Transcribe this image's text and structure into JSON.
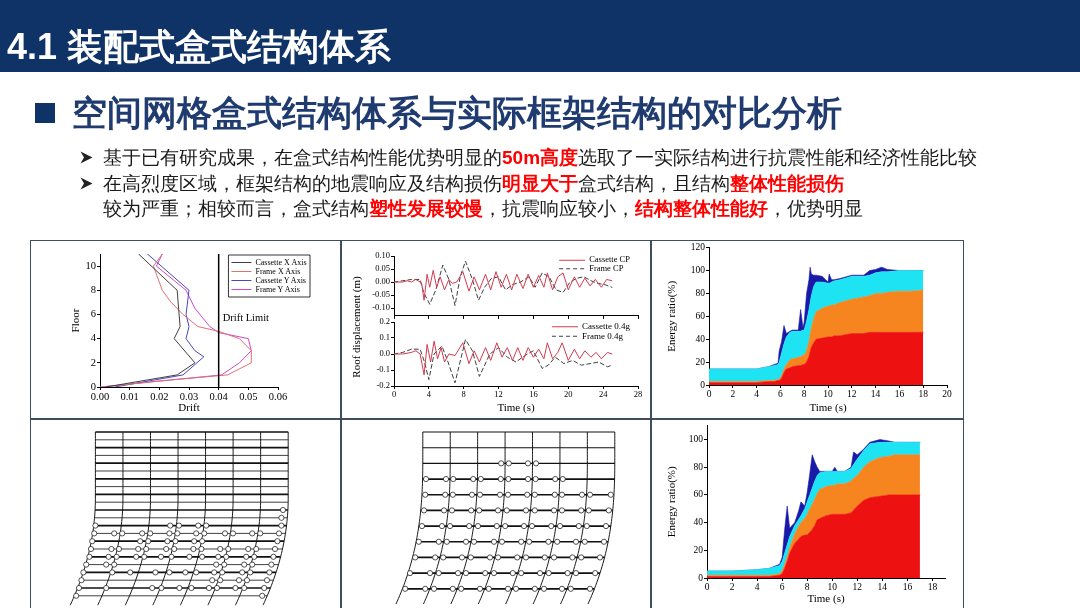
{
  "chart_data": [
    {
      "type": "other",
      "title": "4.1 装配式盒式结构体系",
      "subtitle": "空间网格盒式结构体系与实际框架结构的对比分析",
      "annotations": [
        "基于已有研究成果，在盒式结构性能优势明显的",
        "50m高度",
        "选取了一实际结构进行抗震性能和经济性能比较"
      ]
    },
    {
      "type": "other",
      "annotations": [
        "在高烈度区域，框架结构的地震响应及结构损伤",
        "明显大于",
        "盒式结构，且结构",
        "整体性能损伤",
        "较为严重；相较而言，盒式结构",
        "塑性发展较慢",
        "，抗震响应较小，",
        "结构整体性能好",
        "，优势明显"
      ]
    },
    {
      "type": "line",
      "xlabel": "Drift",
      "ylabel": "Floor",
      "xlim": [
        0,
        0.06
      ],
      "xticks": [
        {
          "value": 0,
          "label": "0.00"
        },
        0.01,
        0.02,
        0.03,
        0.04,
        0.05,
        0.06
      ],
      "ylim": [
        0,
        11
      ],
      "yticks": [
        0,
        2,
        4,
        6,
        8,
        10
      ],
      "legend": "top right",
      "ref_lines": [
        {
          "axis": "x",
          "value": 0.04,
          "label": "Drift Limit",
          "color": "#000000"
        }
      ],
      "series": [
        {
          "name": "Cassette X Axis",
          "color": "#404040",
          "x": [
            0.002,
            0.026,
            0.032,
            0.025,
            0.027,
            0.026,
            0.013
          ],
          "values": [
            0,
            1,
            2,
            4,
            5,
            8,
            11
          ]
        },
        {
          "name": "Frame X Axis",
          "color": "#e07070",
          "x": [
            0.001,
            0.02,
            0.043,
            0.051,
            0.051,
            0.047,
            0.04,
            0.033,
            0.028,
            0.024,
            0.021,
            0.018,
            0.021
          ],
          "values": [
            0,
            0.5,
            1,
            2,
            3,
            4,
            4.6,
            5,
            6,
            7,
            8,
            10,
            11
          ]
        },
        {
          "name": "Cassette Y Axis",
          "color": "#4848c0",
          "x": [
            0.005,
            0.028,
            0.035,
            0.032,
            0.029,
            0.03,
            0.029,
            0.03,
            0.016
          ],
          "values": [
            0,
            1,
            2.5,
            3,
            4,
            5,
            6,
            8,
            11
          ]
        },
        {
          "name": "Frame Y Axis",
          "color": "#d048d0",
          "x": [
            0,
            0.041,
            0.047,
            0.051,
            0.05,
            0.04,
            0.037,
            0.032,
            0.029,
            0.019,
            0.021
          ],
          "values": [
            0,
            1,
            2,
            3,
            4,
            4.5,
            5,
            6.5,
            8,
            10,
            11
          ]
        }
      ]
    },
    {
      "type": "line",
      "ylabel": "Roof displacement (m)",
      "xlim": [
        0,
        28
      ],
      "xticks": [
        0,
        4,
        8,
        12,
        16,
        20,
        24,
        28
      ],
      "ylim": [
        -0.13,
        0.1
      ],
      "yticks": [
        {
          "value": -0.1,
          "label": "-0.10"
        },
        -0.05,
        {
          "value": 0,
          "label": "0.00"
        },
        0.05,
        {
          "value": 0.1,
          "label": "0.10"
        }
      ],
      "tick_labels": "y",
      "legend": "top right",
      "series": [
        {
          "name": "Cassette CP",
          "color": "#d23c50",
          "x": [
            0,
            1,
            1.5,
            2,
            2.5,
            3,
            3.2,
            3.45,
            3.8,
            4.1,
            4.5,
            4.9,
            5.3,
            5.8,
            6.3,
            6.7,
            7.2,
            7.9,
            8.6,
            9.2,
            9.8,
            10.5,
            11.1,
            11.7,
            12.3,
            12.9,
            13.5,
            14.1,
            14.8,
            15.4,
            16,
            16.6,
            17.2,
            17.6,
            18.2,
            18.8,
            19.4,
            20,
            20.7,
            21.3,
            21.9,
            22.5,
            23.1,
            23.8,
            24.4,
            25
          ],
          "values": [
            0,
            0,
            0.005,
            0,
            0.01,
            0,
            -0.01,
            -0.07,
            0.03,
            -0.02,
            0.045,
            -0.02,
            0.02,
            -0.03,
            0.01,
            -0.005,
            0,
            0.04,
            -0.035,
            0.02,
            -0.03,
            0.03,
            -0.03,
            0.04,
            -0.02,
            0.03,
            -0.03,
            0.03,
            -0.025,
            0.03,
            -0.02,
            0.025,
            -0.02,
            0.035,
            -0.03,
            0.02,
            0.035,
            -0.03,
            0.02,
            -0.02,
            0.015,
            -0.015,
            0.01,
            -0.02,
            0.01,
            0.005
          ]
        },
        {
          "name": "Frame CP",
          "color": "#404040",
          "line_style": "dashed",
          "x": [
            0,
            1,
            2,
            3,
            3.4,
            4.1,
            4.8,
            5.6,
            6.3,
            7,
            7.6,
            8.2,
            9,
            9.7,
            10.4,
            11.2,
            12,
            12.8,
            13.6,
            14.5,
            15.5,
            16.2,
            17,
            17.8,
            18.6,
            19.4,
            20.2,
            21,
            21.8,
            22.6,
            23.4,
            24.2,
            25
          ],
          "values": [
            0,
            0.005,
            0.01,
            0.01,
            -0.04,
            -0.085,
            -0.03,
            0.065,
            0.01,
            -0.09,
            0.02,
            0.08,
            0.01,
            -0.07,
            -0.02,
            0.015,
            0.02,
            -0.03,
            -0.01,
            0,
            0.02,
            -0.02,
            0.035,
            0.02,
            -0.03,
            -0.04,
            0,
            0.015,
            0.02,
            0.005,
            -0.005,
            -0.01,
            -0.02
          ]
        }
      ]
    },
    {
      "type": "line",
      "xlabel": "Time (s)",
      "xlim": [
        0,
        28
      ],
      "xticks": [
        0,
        4,
        8,
        12,
        16,
        20,
        24,
        28
      ],
      "ylim": [
        -0.2,
        0.2
      ],
      "yticks": [
        -0.2,
        -0.1,
        {
          "value": 0,
          "label": "0.0"
        },
        0.1,
        0.2
      ],
      "legend": "top right",
      "series": [
        {
          "name": "Cassette 0.4g",
          "color": "#d23c50",
          "x": [
            0,
            1,
            2,
            2.5,
            3,
            3.45,
            3.8,
            4.2,
            4.6,
            5,
            5.4,
            5.8,
            6.3,
            7,
            7.9,
            8.6,
            9.2,
            9.8,
            10.5,
            11.1,
            11.8,
            12.4,
            13,
            13.6,
            14.2,
            14.8,
            15.4,
            16,
            16.6,
            17.2,
            17.6,
            18.2,
            18.8,
            19.3,
            20,
            20.7,
            21.3,
            21.9,
            22.6,
            23.2,
            23.8,
            24.5,
            25
          ],
          "values": [
            0,
            0,
            0.01,
            0.02,
            0,
            -0.13,
            0.06,
            -0.05,
            0.08,
            -0.03,
            0.04,
            -0.05,
            0,
            -0.01,
            0.07,
            -0.06,
            0.02,
            -0.05,
            0.04,
            -0.04,
            0.07,
            -0.02,
            0.04,
            -0.04,
            0.04,
            -0.04,
            0.04,
            -0.02,
            0.03,
            -0.03,
            0.07,
            -0.03,
            0.01,
            0.07,
            -0.04,
            0.03,
            -0.03,
            0.02,
            -0.02,
            0.01,
            -0.03,
            0.01,
            0
          ]
        },
        {
          "name": "Frame 0.4g",
          "color": "#404040",
          "line_style": "dashed",
          "x": [
            0,
            1,
            2,
            3,
            3.5,
            4,
            4.6,
            5.5,
            6.2,
            7,
            8.2,
            9,
            9.8,
            11,
            12,
            13,
            14,
            15,
            16,
            17,
            17.7,
            18.5,
            19.5,
            20.5,
            21.5,
            22.5,
            23.5,
            24.5,
            25
          ],
          "values": [
            0,
            0.01,
            0.03,
            0.03,
            -0.05,
            -0.16,
            0,
            0.05,
            -0.05,
            -0.18,
            0.09,
            0.02,
            -0.14,
            0,
            0.04,
            -0.02,
            -0.05,
            -0.01,
            0.02,
            -0.09,
            -0.07,
            -0.02,
            -0.06,
            -0.04,
            -0.07,
            -0.06,
            -0.05,
            -0.08,
            -0.07
          ]
        }
      ]
    },
    {
      "type": "area",
      "stacked": true,
      "xlabel": "Time (s)",
      "ylabel": "Energy ratio(%)",
      "xlim": [
        0,
        20
      ],
      "xticks": [
        0,
        2,
        4,
        6,
        8,
        10,
        12,
        14,
        16,
        18,
        20
      ],
      "ylim": [
        0,
        120
      ],
      "yticks": [
        0,
        20,
        40,
        60,
        80,
        100,
        120
      ],
      "x": [
        0,
        2,
        4,
        5,
        5.5,
        5.8,
        5.9,
        6.1,
        6.3,
        6.5,
        6.8,
        7,
        7.5,
        7.7,
        7.9,
        8,
        8.2,
        8.4,
        8.5,
        8.6,
        8.8,
        9,
        9.5,
        10,
        10.1,
        10.3,
        10.5,
        11,
        12,
        13,
        13.5,
        14,
        14.5,
        15,
        16,
        17,
        18
      ],
      "series": [
        {
          "color": "#ee1111",
          "values": [
            2,
            2,
            2,
            3,
            3,
            4,
            4,
            6,
            11,
            14,
            15,
            16,
            17,
            17,
            18,
            18,
            20,
            25,
            29,
            33,
            37,
            40,
            41,
            42,
            42,
            42,
            43,
            43,
            45,
            45,
            46,
            46,
            46,
            46,
            46,
            46,
            46
          ]
        },
        {
          "color": "#f7851f",
          "values": [
            1,
            1,
            1,
            1,
            1,
            1,
            1,
            2,
            3,
            4,
            7,
            7,
            7,
            8,
            8,
            8,
            10,
            13,
            15,
            17,
            21,
            24,
            26,
            27,
            27,
            28,
            27,
            29,
            30,
            32,
            32,
            34,
            34,
            35,
            36,
            36,
            37
          ]
        },
        {
          "color": "#1ee3f3",
          "values": [
            11,
            11,
            11,
            12,
            13,
            13,
            15,
            20,
            22,
            24,
            24,
            24,
            23,
            22,
            22,
            22,
            26,
            28,
            28,
            28,
            28,
            26,
            23,
            20,
            20,
            20,
            21,
            20,
            20,
            18,
            18,
            18,
            19,
            18,
            18,
            18,
            17
          ]
        },
        {
          "color": "#1a1aa8",
          "values": [
            0,
            0,
            0,
            0,
            1,
            1,
            10,
            10,
            16,
            3,
            1,
            1,
            1,
            19,
            2,
            7,
            24,
            26,
            31,
            19,
            10,
            6,
            5,
            1,
            8,
            2,
            1,
            1,
            1,
            1,
            4,
            3,
            4,
            2,
            0,
            0,
            0
          ]
        }
      ]
    },
    {
      "type": "area",
      "stacked": true,
      "xlabel": "Time (s)",
      "ylabel": "Energy ratio(%)",
      "xlim": [
        0,
        19
      ],
      "xticks": [
        0,
        2,
        4,
        6,
        8,
        10,
        12,
        14,
        16,
        18
      ],
      "ylim": [
        0,
        110
      ],
      "yticks": [
        0,
        20,
        40,
        60,
        80,
        100
      ],
      "x": [
        0,
        2,
        4,
        5,
        5.8,
        6,
        6.2,
        6.4,
        6.6,
        7,
        7.3,
        7.5,
        7.8,
        8,
        8.2,
        8.4,
        8.6,
        8.8,
        9,
        9.5,
        10,
        10.2,
        10.4,
        11,
        11.5,
        11.7,
        12,
        12.5,
        13,
        13.8,
        14.5,
        15,
        16,
        17
      ],
      "series": [
        {
          "color": "#ee1111",
          "values": [
            1,
            1,
            1,
            1,
            2,
            3,
            7,
            12,
            18,
            25,
            28,
            30,
            31,
            31,
            33,
            35,
            38,
            42,
            43,
            45,
            46,
            46,
            46,
            46,
            47,
            49,
            52,
            56,
            58,
            59,
            60,
            60,
            60,
            60
          ]
        },
        {
          "color": "#f7851f",
          "values": [
            1,
            1,
            1,
            1,
            1,
            2,
            3,
            3,
            4,
            7,
            9,
            10,
            12,
            15,
            17,
            18,
            19,
            19,
            21,
            21,
            21,
            21,
            22,
            22,
            23,
            23,
            22,
            24,
            26,
            28,
            28,
            29,
            29,
            29
          ]
        },
        {
          "color": "#1ee3f3",
          "values": [
            3,
            3,
            4,
            5,
            6,
            7,
            8,
            9,
            8,
            6,
            5,
            5,
            7,
            9,
            10,
            12,
            13,
            13,
            12,
            11,
            10,
            10,
            9,
            9,
            9,
            10,
            12,
            12,
            13,
            11,
            10,
            9,
            9,
            9
          ]
        },
        {
          "color": "#1a1aa8",
          "values": [
            0,
            0,
            0,
            0,
            1,
            3,
            17,
            28,
            6,
            2,
            6,
            10,
            2,
            7,
            15,
            24,
            14,
            6,
            1,
            0,
            0,
            3,
            0,
            0,
            1,
            9,
            3,
            1,
            1,
            2,
            1,
            0,
            0,
            0
          ]
        }
      ]
    }
  ]
}
